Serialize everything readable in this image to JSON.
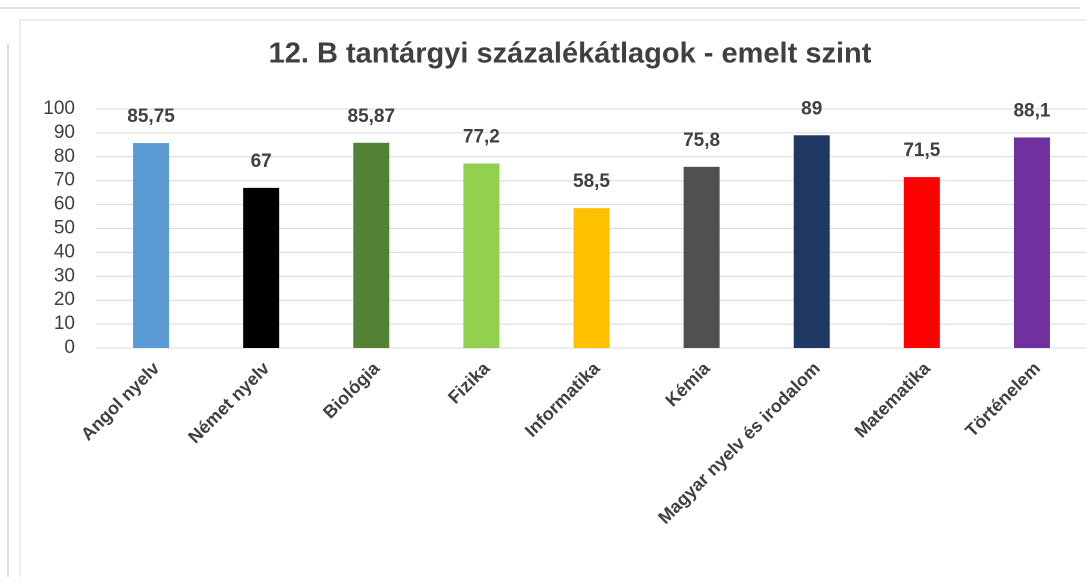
{
  "chart_data": {
    "type": "bar",
    "title": "12. B tantárgyi százalékátlagok - emelt szint",
    "categories": [
      "Angol nyelv",
      "Német nyelv",
      "Biológia",
      "Fizika",
      "Informatika",
      "Kémia",
      "Magyar nyelv és irodalom",
      "Matematika",
      "Történelem"
    ],
    "values": [
      85.75,
      67,
      85.87,
      77.2,
      58.5,
      75.8,
      89,
      71.5,
      88.1
    ],
    "value_labels": [
      "85,75",
      "67",
      "85,87",
      "77,2",
      "58,5",
      "75,8",
      "89",
      "71,5",
      "88,1"
    ],
    "colors": [
      "#5b9bd5",
      "#000000",
      "#548235",
      "#92d050",
      "#ffc000",
      "#505050",
      "#1f3864",
      "#ff0000",
      "#7030a0"
    ],
    "ylim": [
      0,
      100
    ],
    "yticks": [
      0,
      10,
      20,
      30,
      40,
      50,
      60,
      70,
      80,
      90,
      100
    ],
    "grid": true
  }
}
